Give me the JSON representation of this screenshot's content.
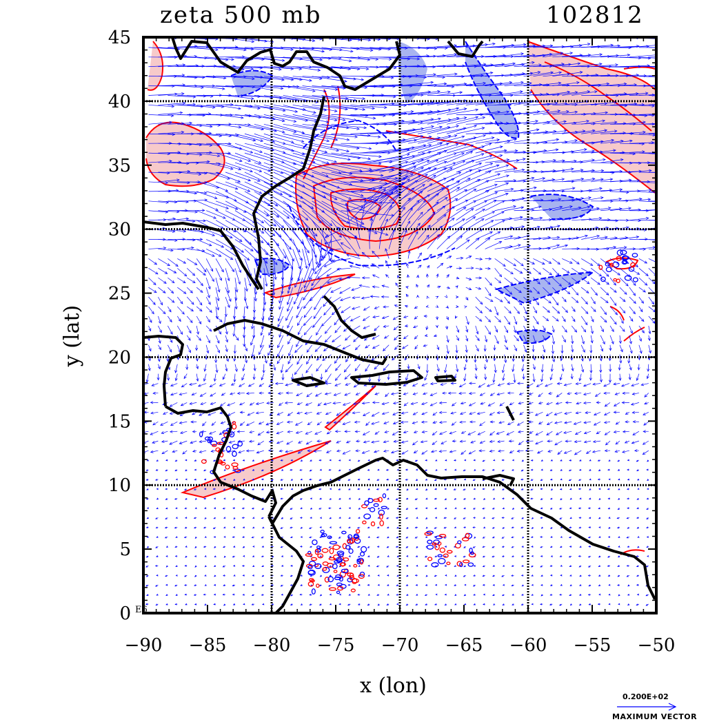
{
  "title_left": "zeta 500 mb",
  "title_right": "102812",
  "xlabel": "x (lon)",
  "ylabel": "y (lat)",
  "x_ticks": [
    "−90",
    "−85",
    "−80",
    "−75",
    "−70",
    "−65",
    "−60",
    "−55",
    "−50"
  ],
  "y_ticks": [
    "0",
    "5",
    "10",
    "15",
    "20",
    "25",
    "30",
    "35",
    "40",
    "45"
  ],
  "corner_label": "E6",
  "legend": {
    "max_vector_value": "0.200E+02",
    "max_vector_label": "MAXIMUM VECTOR"
  },
  "map_extent": {
    "lon": [
      -90,
      -50
    ],
    "lat": [
      0,
      45
    ]
  },
  "colors": {
    "positive_contour": "#ff0000",
    "positive_fill": "#f7caca",
    "negative_contour": "#0000ff",
    "negative_fill": "#a8b4f0",
    "vectors": "#0000ff",
    "coast": "#000000"
  }
}
